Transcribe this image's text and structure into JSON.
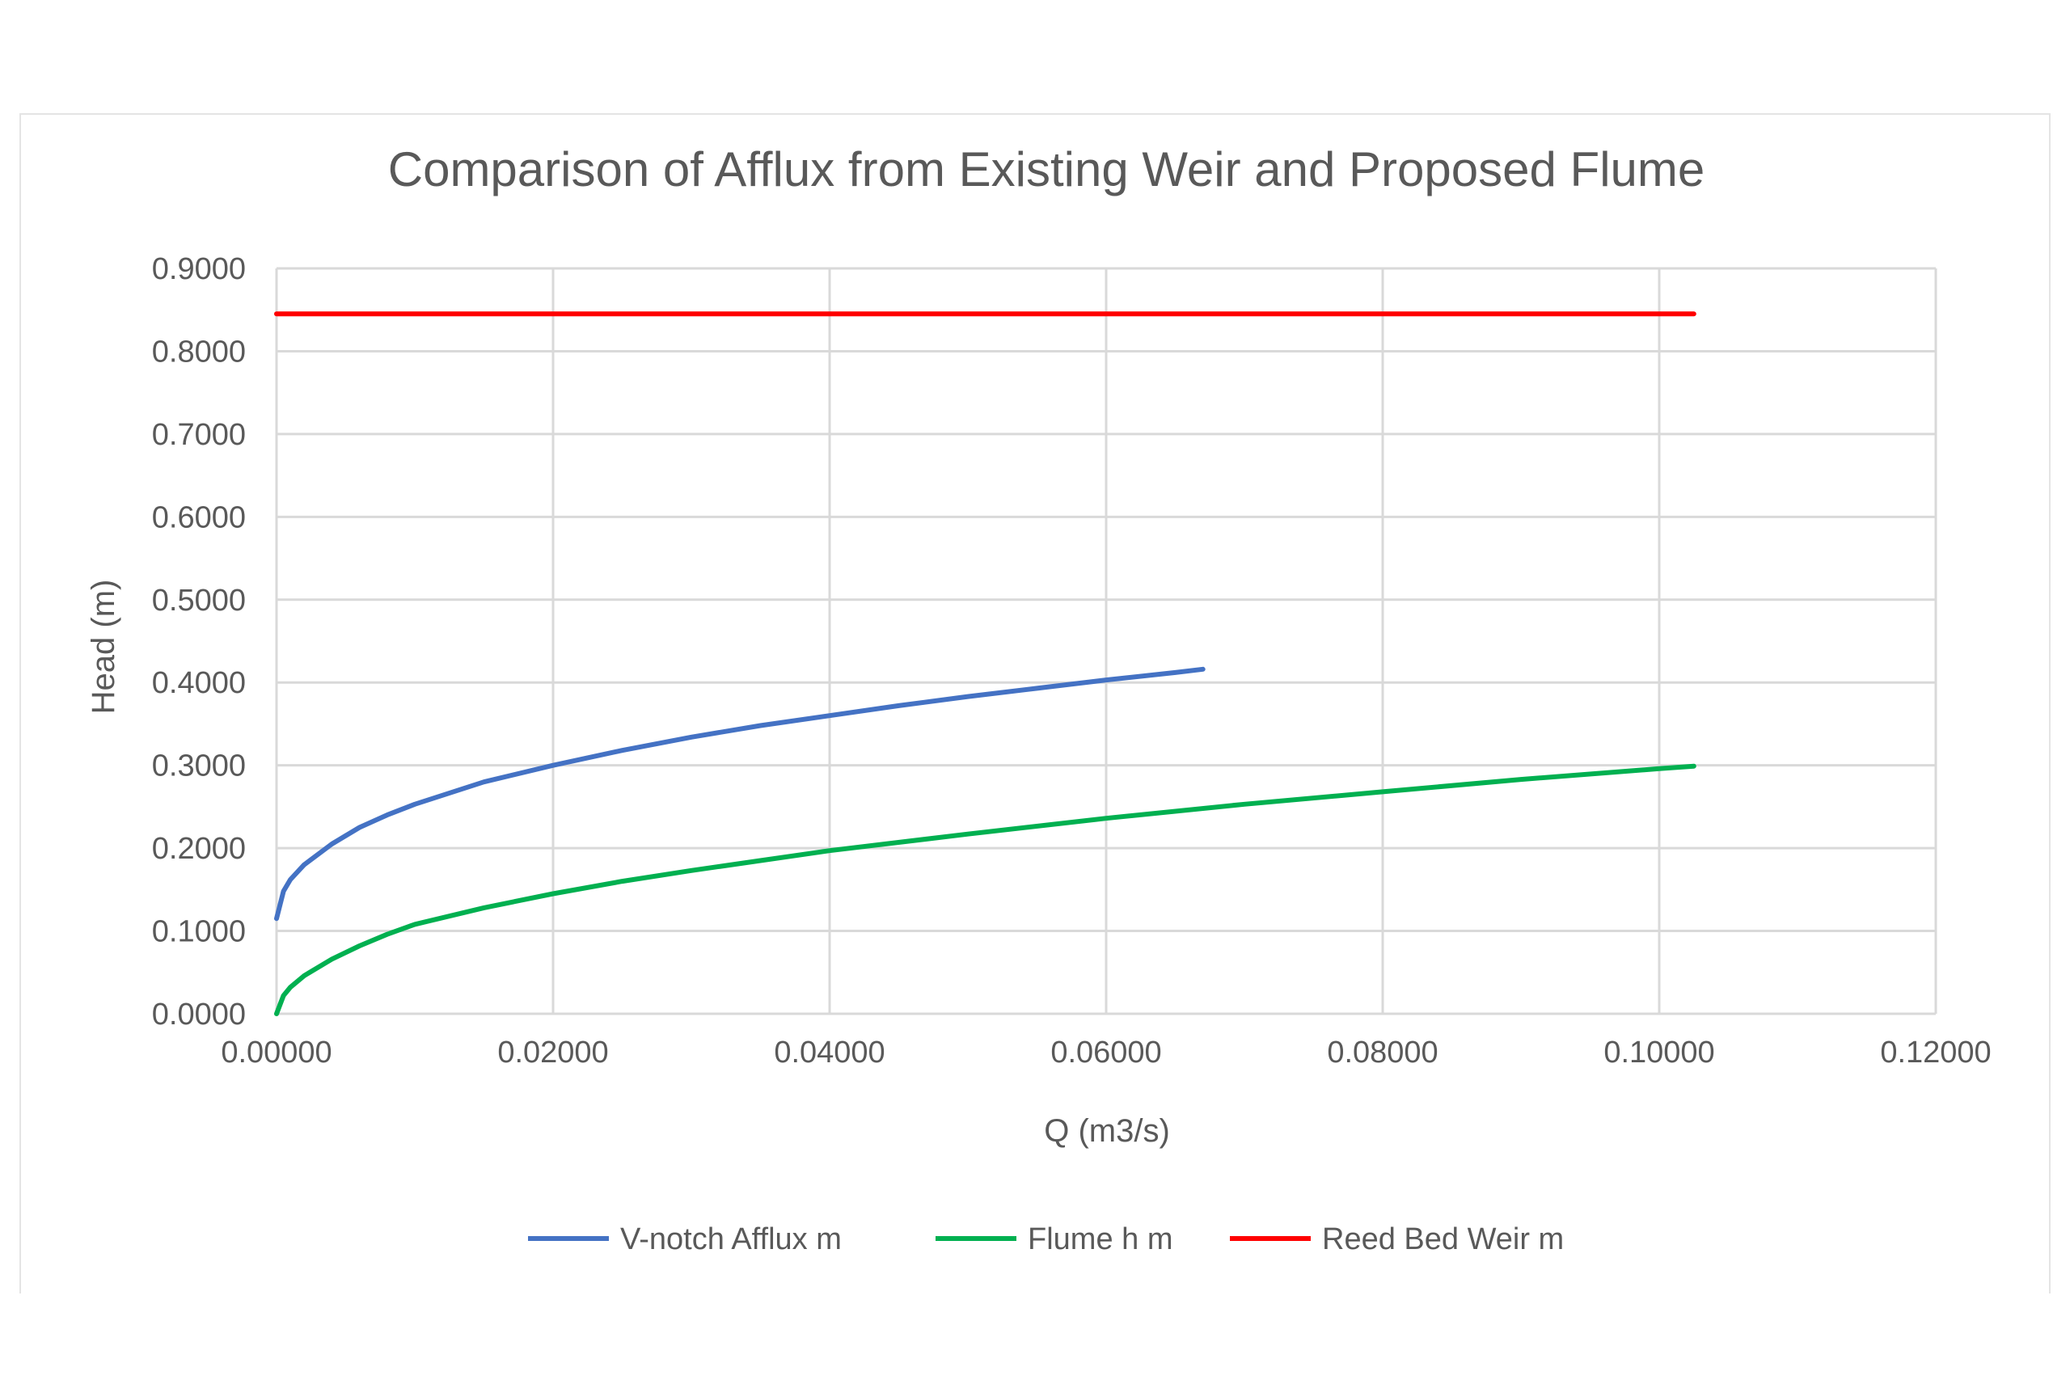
{
  "chart_data": {
    "type": "line",
    "title": "Comparison of Afflux from Existing Weir and Proposed Flume",
    "xlabel": "Q (m3/s)",
    "ylabel": "Head (m)",
    "xlim": [
      0,
      0.12
    ],
    "ylim": [
      0,
      0.9
    ],
    "x_ticks": [
      "0.00000",
      "0.02000",
      "0.04000",
      "0.06000",
      "0.08000",
      "0.10000",
      "0.12000"
    ],
    "y_ticks": [
      "0.0000",
      "0.1000",
      "0.2000",
      "0.3000",
      "0.4000",
      "0.5000",
      "0.6000",
      "0.7000",
      "0.8000",
      "0.9000"
    ],
    "grid": true,
    "legend_position": "bottom",
    "series": [
      {
        "name": "V-notch Afflux m",
        "color": "#4472c4",
        "points": [
          [
            0,
            0.115
          ],
          [
            0.0005,
            0.148
          ],
          [
            0.001,
            0.162
          ],
          [
            0.002,
            0.18
          ],
          [
            0.004,
            0.205
          ],
          [
            0.006,
            0.225
          ],
          [
            0.008,
            0.24
          ],
          [
            0.01,
            0.253
          ],
          [
            0.015,
            0.28
          ],
          [
            0.02,
            0.3
          ],
          [
            0.025,
            0.318
          ],
          [
            0.03,
            0.334
          ],
          [
            0.035,
            0.348
          ],
          [
            0.04,
            0.36
          ],
          [
            0.045,
            0.372
          ],
          [
            0.05,
            0.383
          ],
          [
            0.055,
            0.393
          ],
          [
            0.06,
            0.403
          ],
          [
            0.065,
            0.412
          ],
          [
            0.067,
            0.416
          ]
        ]
      },
      {
        "name": "Flume h m",
        "color": "#00b050",
        "points": [
          [
            0,
            0.0
          ],
          [
            0.0005,
            0.022
          ],
          [
            0.001,
            0.032
          ],
          [
            0.002,
            0.046
          ],
          [
            0.004,
            0.066
          ],
          [
            0.006,
            0.082
          ],
          [
            0.008,
            0.096
          ],
          [
            0.01,
            0.108
          ],
          [
            0.015,
            0.128
          ],
          [
            0.02,
            0.145
          ],
          [
            0.025,
            0.16
          ],
          [
            0.03,
            0.173
          ],
          [
            0.035,
            0.185
          ],
          [
            0.04,
            0.197
          ],
          [
            0.05,
            0.217
          ],
          [
            0.06,
            0.236
          ],
          [
            0.07,
            0.253
          ],
          [
            0.08,
            0.268
          ],
          [
            0.09,
            0.283
          ],
          [
            0.1,
            0.296
          ],
          [
            0.1025,
            0.299
          ]
        ]
      },
      {
        "name": "Reed Bed Weir m",
        "color": "#ff0000",
        "points": [
          [
            0,
            0.845
          ],
          [
            0.1025,
            0.845
          ]
        ]
      }
    ]
  }
}
